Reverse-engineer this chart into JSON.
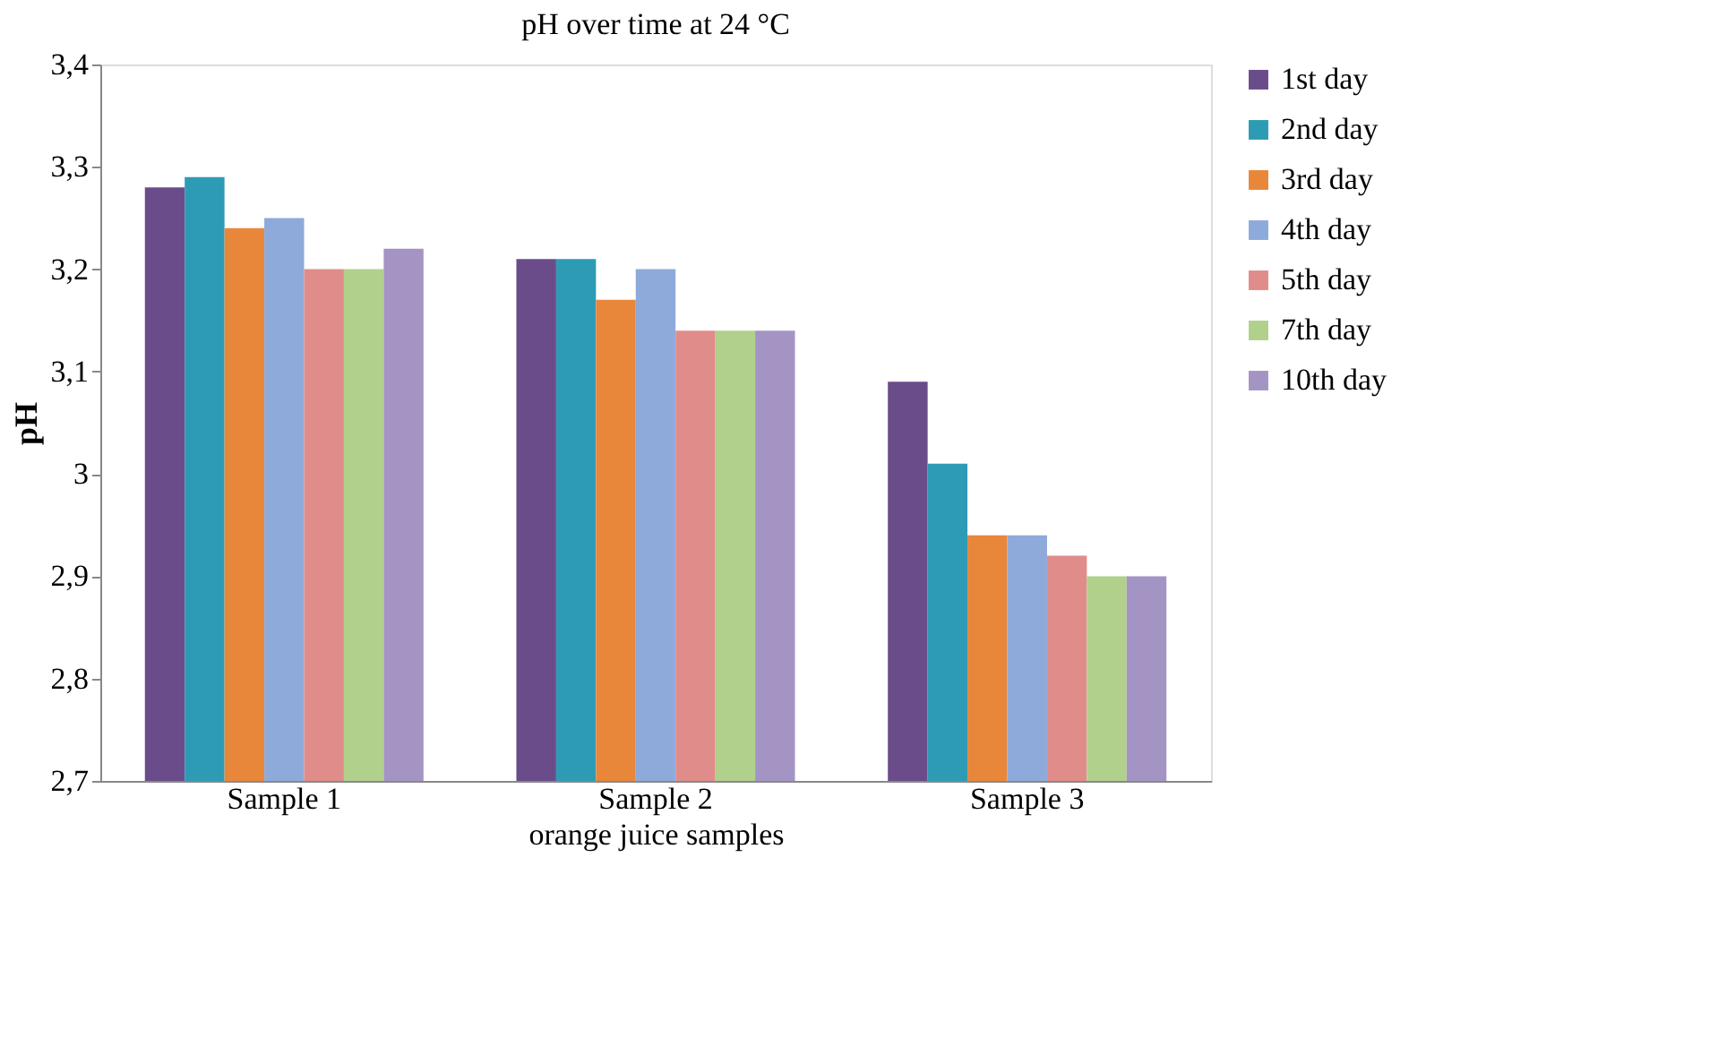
{
  "chart_data": {
    "type": "bar",
    "title": "pH over time at 24 °C",
    "xlabel": "orange juice samples",
    "ylabel": "pH",
    "categories": [
      "Sample 1",
      "Sample 2",
      "Sample 3"
    ],
    "series": [
      {
        "name": "1st day",
        "color": "#6b4c8a",
        "values": [
          3.28,
          3.21,
          3.09
        ]
      },
      {
        "name": "2nd day",
        "color": "#2e9bb5",
        "values": [
          3.29,
          3.21,
          3.01
        ]
      },
      {
        "name": "3rd day",
        "color": "#e8873a",
        "values": [
          3.24,
          3.17,
          2.94
        ]
      },
      {
        "name": "4th day",
        "color": "#8eaadb",
        "values": [
          3.25,
          3.2,
          2.94
        ]
      },
      {
        "name": "5th day",
        "color": "#e08c8a",
        "values": [
          3.2,
          3.14,
          2.92
        ]
      },
      {
        "name": "7th day",
        "color": "#b0d08c",
        "values": [
          3.2,
          3.14,
          2.9
        ]
      },
      {
        "name": "10th day",
        "color": "#a494c4",
        "values": [
          3.22,
          3.14,
          2.9
        ]
      }
    ],
    "ylim": [
      2.7,
      3.4
    ],
    "yticks": [
      {
        "value": 2.7,
        "label": "2,7"
      },
      {
        "value": 2.8,
        "label": "2,8"
      },
      {
        "value": 2.9,
        "label": "2,9"
      },
      3,
      {
        "value": 3.1,
        "label": "3,1"
      },
      {
        "value": 3.2,
        "label": "3,2"
      },
      {
        "value": 3.3,
        "label": "3,3"
      },
      {
        "value": 3.4,
        "label": "3,4"
      }
    ],
    "grid": false,
    "legend": "right"
  }
}
